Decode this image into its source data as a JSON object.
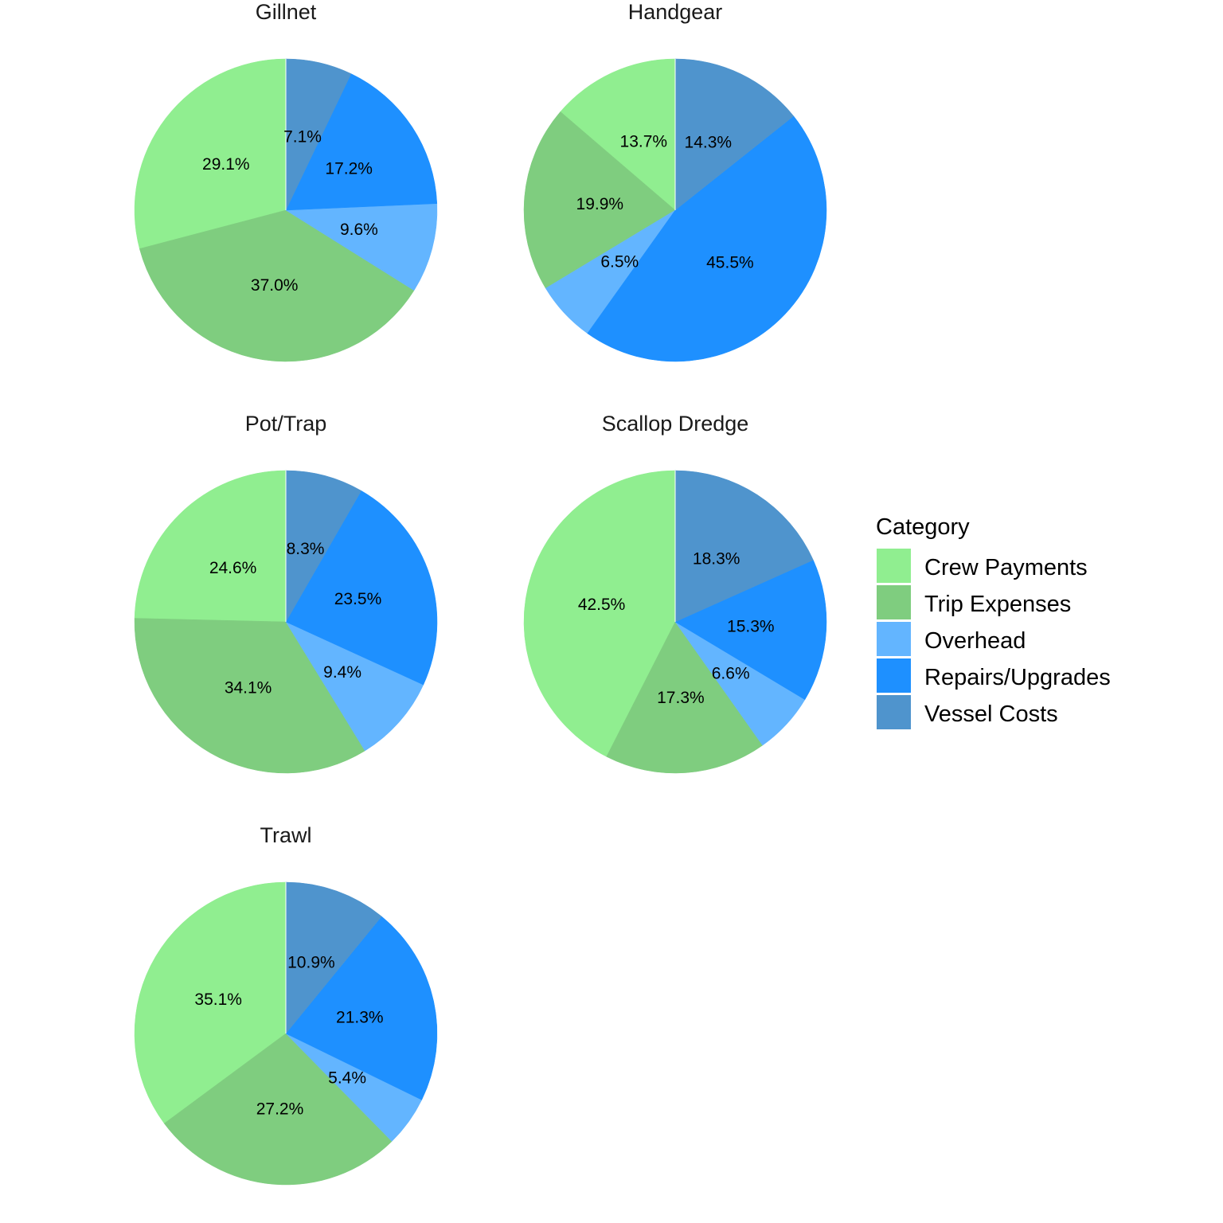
{
  "chart_data": {
    "type": "pie",
    "legend": {
      "title": "Category",
      "placement": "right",
      "items": [
        {
          "name": "Crew Payments",
          "color": "#90EE90"
        },
        {
          "name": "Trip Expenses",
          "color": "#7FCD7F"
        },
        {
          "name": "Overhead",
          "color": "#63B5FF"
        },
        {
          "name": "Repairs/Upgrades",
          "color": "#1E90FF"
        },
        {
          "name": "Vessel Costs",
          "color": "#4F94CD"
        }
      ]
    },
    "categories": [
      "Crew Payments",
      "Trip Expenses",
      "Overhead",
      "Repairs/Upgrades",
      "Vessel Costs"
    ],
    "facets": [
      {
        "title": "Gillnet",
        "values": [
          29.1,
          37.0,
          9.6,
          17.2,
          7.1
        ],
        "labels": [
          "29.1%",
          "37.0%",
          "9.6%",
          "17.2%",
          "7.1%"
        ]
      },
      {
        "title": "Handgear",
        "values": [
          13.7,
          19.9,
          6.5,
          45.5,
          14.3
        ],
        "labels": [
          "13.7%",
          "19.9%",
          "6.5%",
          "45.5%",
          "14.3%"
        ]
      },
      {
        "title": "Pot/Trap",
        "values": [
          24.6,
          34.1,
          9.4,
          23.5,
          8.3
        ],
        "labels": [
          "24.6%",
          "34.1%",
          "9.4%",
          "23.5%",
          "8.3%"
        ]
      },
      {
        "title": "Scallop Dredge",
        "values": [
          42.5,
          17.3,
          6.6,
          15.3,
          18.3
        ],
        "labels": [
          "42.5%",
          "17.3%",
          "6.6%",
          "15.3%",
          "18.3%"
        ]
      },
      {
        "title": "Trawl",
        "values": [
          35.1,
          27.2,
          5.4,
          21.3,
          10.9
        ],
        "labels": [
          "35.1%",
          "27.2%",
          "5.4%",
          "21.3%",
          "10.9%"
        ]
      }
    ]
  }
}
